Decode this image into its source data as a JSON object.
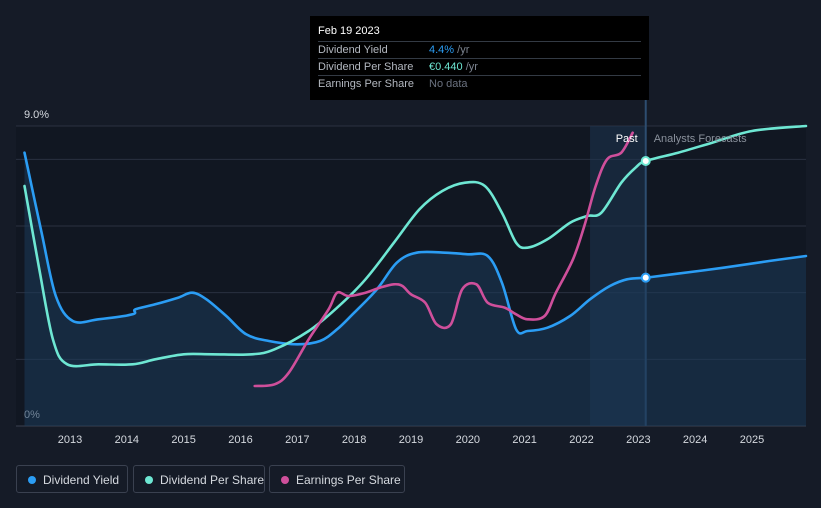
{
  "tooltip": {
    "date": "Feb 19 2023",
    "rows": [
      {
        "label": "Dividend Yield",
        "value": "4.4%",
        "unit": " /yr"
      },
      {
        "label": "Dividend Per Share",
        "value": "€0.440",
        "unit": " /yr"
      },
      {
        "label": "Earnings Per Share",
        "value": "No data",
        "unit": ""
      }
    ]
  },
  "legend": {
    "dividend_yield": "Dividend Yield",
    "dividend_per_share": "Dividend Per Share",
    "earnings_per_share": "Earnings Per Share"
  },
  "colors": {
    "background": "#151b27",
    "dividend_yield": "#2b9df4",
    "dividend_per_share": "#6ee7d3",
    "earnings_per_share": "#cf4f9b",
    "forecast_band": "#1d3550"
  },
  "chart_data": {
    "type": "line",
    "y_axis_labels": [
      "9.0%",
      "0%"
    ],
    "ylim": [
      0,
      9
    ],
    "xlim": [
      2012.05,
      2025.95
    ],
    "x_tick_labels": [
      "2013",
      "2014",
      "2015",
      "2016",
      "2017",
      "2018",
      "2019",
      "2020",
      "2021",
      "2022",
      "2023",
      "2024",
      "2025"
    ],
    "x_ticks": [
      2013,
      2014,
      2015,
      2016,
      2017,
      2018,
      2019,
      2020,
      2021,
      2022,
      2023,
      2024,
      2025
    ],
    "past_label": "Past",
    "forecast_label": "Analysts Forecasts",
    "current_date": 2023.13,
    "past_band_start": 2022.15,
    "series": [
      {
        "name": "Dividend Yield",
        "key": "dividend_yield",
        "unit": "%",
        "area": true,
        "values": [
          [
            2012.2,
            8.2
          ],
          [
            2012.5,
            5.8
          ],
          [
            2012.75,
            3.9
          ],
          [
            2013.05,
            3.15
          ],
          [
            2013.5,
            3.2
          ],
          [
            2014.1,
            3.35
          ],
          [
            2014.15,
            3.5
          ],
          [
            2014.5,
            3.65
          ],
          [
            2014.9,
            3.85
          ],
          [
            2015.15,
            4.0
          ],
          [
            2015.4,
            3.8
          ],
          [
            2015.75,
            3.3
          ],
          [
            2016.1,
            2.75
          ],
          [
            2016.5,
            2.55
          ],
          [
            2017.0,
            2.45
          ],
          [
            2017.4,
            2.55
          ],
          [
            2017.7,
            2.9
          ],
          [
            2018.0,
            3.4
          ],
          [
            2018.4,
            4.1
          ],
          [
            2018.75,
            4.9
          ],
          [
            2019.1,
            5.2
          ],
          [
            2019.6,
            5.2
          ],
          [
            2020.0,
            5.15
          ],
          [
            2020.35,
            5.1
          ],
          [
            2020.6,
            4.3
          ],
          [
            2020.85,
            2.9
          ],
          [
            2021.05,
            2.85
          ],
          [
            2021.4,
            2.95
          ],
          [
            2021.8,
            3.3
          ],
          [
            2022.15,
            3.8
          ],
          [
            2022.5,
            4.2
          ],
          [
            2022.8,
            4.4
          ],
          [
            2023.13,
            4.45
          ],
          [
            2023.6,
            4.55
          ],
          [
            2024.5,
            4.75
          ],
          [
            2025.3,
            4.95
          ],
          [
            2025.95,
            5.1
          ]
        ]
      },
      {
        "name": "Dividend Per Share",
        "key": "dividend_per_share",
        "unit": "EUR",
        "area": false,
        "values": [
          [
            2012.2,
            7.2
          ],
          [
            2012.45,
            4.8
          ],
          [
            2012.7,
            2.6
          ],
          [
            2012.95,
            1.85
          ],
          [
            2013.5,
            1.85
          ],
          [
            2014.1,
            1.85
          ],
          [
            2014.5,
            2.0
          ],
          [
            2015.0,
            2.15
          ],
          [
            2015.5,
            2.15
          ],
          [
            2016.2,
            2.15
          ],
          [
            2016.6,
            2.3
          ],
          [
            2017.2,
            2.85
          ],
          [
            2017.7,
            3.55
          ],
          [
            2018.2,
            4.4
          ],
          [
            2018.7,
            5.5
          ],
          [
            2019.15,
            6.5
          ],
          [
            2019.55,
            7.05
          ],
          [
            2019.95,
            7.3
          ],
          [
            2020.3,
            7.2
          ],
          [
            2020.6,
            6.4
          ],
          [
            2020.85,
            5.5
          ],
          [
            2021.05,
            5.35
          ],
          [
            2021.4,
            5.6
          ],
          [
            2021.8,
            6.1
          ],
          [
            2022.1,
            6.3
          ],
          [
            2022.35,
            6.4
          ],
          [
            2022.7,
            7.3
          ],
          [
            2022.95,
            7.75
          ],
          [
            2023.13,
            7.95
          ],
          [
            2023.7,
            8.2
          ],
          [
            2024.3,
            8.5
          ],
          [
            2025.0,
            8.85
          ],
          [
            2025.95,
            9.0
          ]
        ]
      },
      {
        "name": "Earnings Per Share",
        "key": "earnings_per_share",
        "unit": "EUR",
        "area": false,
        "values": [
          [
            2016.25,
            1.2
          ],
          [
            2016.6,
            1.25
          ],
          [
            2016.85,
            1.6
          ],
          [
            2017.2,
            2.6
          ],
          [
            2017.55,
            3.5
          ],
          [
            2017.7,
            4.0
          ],
          [
            2017.9,
            3.9
          ],
          [
            2018.2,
            4.0
          ],
          [
            2018.45,
            4.15
          ],
          [
            2018.7,
            4.25
          ],
          [
            2018.85,
            4.2
          ],
          [
            2019.0,
            3.95
          ],
          [
            2019.25,
            3.7
          ],
          [
            2019.45,
            3.05
          ],
          [
            2019.7,
            3.05
          ],
          [
            2019.9,
            4.1
          ],
          [
            2020.15,
            4.25
          ],
          [
            2020.35,
            3.7
          ],
          [
            2020.65,
            3.55
          ],
          [
            2020.85,
            3.35
          ],
          [
            2021.05,
            3.2
          ],
          [
            2021.35,
            3.3
          ],
          [
            2021.55,
            4.0
          ],
          [
            2021.85,
            5.0
          ],
          [
            2022.05,
            6.0
          ],
          [
            2022.25,
            7.2
          ],
          [
            2022.45,
            8.0
          ],
          [
            2022.7,
            8.2
          ],
          [
            2022.9,
            8.8
          ]
        ]
      }
    ]
  }
}
